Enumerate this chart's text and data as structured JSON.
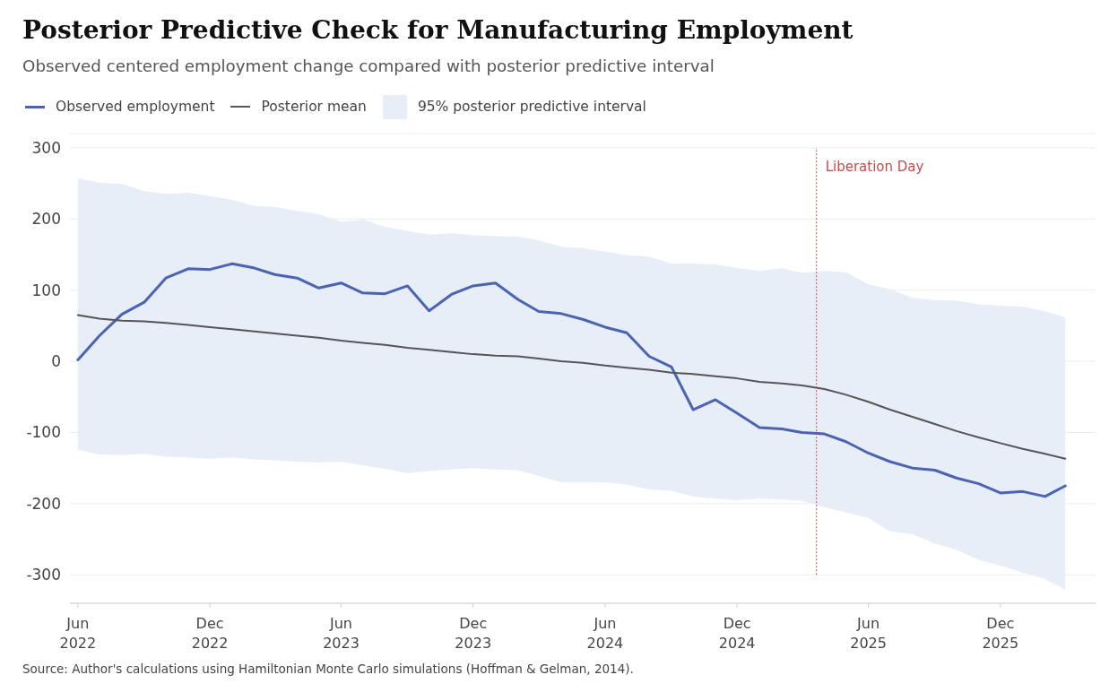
{
  "chart_data": {
    "type": "line",
    "title": "Posterior Predictive Check for Manufacturing Employment",
    "subtitle": "Observed centered employment change compared with posterior predictive interval",
    "x": [
      "2022-06",
      "2022-07",
      "2022-08",
      "2022-09",
      "2022-10",
      "2022-11",
      "2022-12",
      "2023-01",
      "2023-02",
      "2023-03",
      "2023-04",
      "2023-05",
      "2023-06",
      "2023-07",
      "2023-08",
      "2023-09",
      "2023-10",
      "2023-11",
      "2023-12",
      "2024-01",
      "2024-02",
      "2024-03",
      "2024-04",
      "2024-05",
      "2024-06",
      "2024-07",
      "2024-08",
      "2024-09",
      "2024-10",
      "2024-11",
      "2024-12",
      "2025-01",
      "2025-02",
      "2025-03",
      "2025-04",
      "2025-05",
      "2025-06",
      "2025-07",
      "2025-08",
      "2025-09",
      "2025-10",
      "2025-11",
      "2025-12",
      "2026-01",
      "2026-02",
      "2026-03"
    ],
    "series": [
      {
        "name": "Observed employment",
        "color": "#4a63b3",
        "values": [
          2,
          36,
          66,
          83,
          117,
          130,
          129,
          137,
          131,
          122,
          117,
          103,
          110,
          96,
          95,
          106,
          71,
          94,
          106,
          110,
          87,
          70,
          67,
          59,
          48,
          40,
          7,
          -8,
          -68,
          -54,
          -73,
          -93,
          -95,
          -100,
          -102,
          -113,
          -129,
          -141,
          -150,
          -153,
          -164,
          -172,
          -185,
          -183,
          -190,
          -175
        ]
      },
      {
        "name": "Posterior mean",
        "color": "#555555",
        "values": [
          65,
          60,
          57,
          56,
          54,
          51,
          48,
          45,
          42,
          39,
          36,
          33,
          29,
          26,
          23,
          19,
          16,
          13,
          10,
          8,
          7,
          4,
          0,
          -2,
          -6,
          -9,
          -12,
          -16,
          -18,
          -21,
          -24,
          -29,
          -31,
          -34,
          -39,
          -47,
          -57,
          -68,
          -78,
          -88,
          -98,
          -107,
          -115,
          -123,
          -130,
          -137
        ]
      },
      {
        "name": "95% posterior predictive interval",
        "type": "area",
        "color": "#e7eef8",
        "values": [
          null,
          null,
          null,
          null,
          null,
          null,
          null,
          null,
          null,
          null,
          null,
          null,
          null,
          null,
          null,
          null,
          null,
          null,
          null,
          null,
          null,
          null,
          null,
          null,
          null,
          null,
          null,
          null,
          null,
          null,
          null,
          null,
          null,
          null,
          null,
          null,
          null,
          null,
          null,
          null,
          null,
          null,
          null,
          null,
          null,
          null
        ],
        "lower": [
          -124,
          -131,
          -132,
          -130,
          -134,
          -135,
          -137,
          -135,
          -138,
          -139,
          -141,
          -142,
          -141,
          -146,
          -151,
          -157,
          -154,
          -152,
          -150,
          -152,
          -153,
          -161,
          -170,
          -170,
          -170,
          -173,
          -180,
          -182,
          -190,
          -193,
          -195,
          -193,
          -194,
          -196,
          -205,
          -212,
          -220,
          -239,
          -243,
          -256,
          -265,
          -279,
          -287,
          -297,
          -306,
          -321
        ],
        "upper": [
          257,
          251,
          249,
          239,
          235,
          237,
          232,
          227,
          218,
          217,
          211,
          207,
          196,
          199,
          189,
          183,
          178,
          180,
          177,
          176,
          175,
          170,
          161,
          159,
          154,
          149,
          147,
          137,
          137,
          136,
          131,
          127,
          131,
          124,
          127,
          125,
          108,
          101,
          89,
          86,
          85,
          80,
          78,
          77,
          70,
          62
        ]
      }
    ],
    "xlim": [
      "2022-05-21",
      "2026-04-12"
    ],
    "xticks": [
      {
        "value": "2022-06",
        "label": "Jun 2022"
      },
      {
        "value": "2022-12",
        "label": "Dec 2022"
      },
      {
        "value": "2023-06",
        "label": "Jun 2023"
      },
      {
        "value": "2023-12",
        "label": "Dec 2023"
      },
      {
        "value": "2024-06",
        "label": "Jun 2024"
      },
      {
        "value": "2024-12",
        "label": "Dec 2024"
      },
      {
        "value": "2025-06",
        "label": "Jun 2025"
      },
      {
        "value": "2025-12",
        "label": "Dec 2025"
      }
    ],
    "ylim": [
      -340,
      320
    ],
    "yticks": [
      -300,
      -200,
      -100,
      0,
      100,
      200,
      300
    ],
    "ref_lines": [
      {
        "axis": "x",
        "value": "2025-03-21",
        "label": "Liberation Day",
        "color": "#c94a4a",
        "line_style": "dotted"
      }
    ],
    "grid": "y",
    "legend": "top left",
    "marker": "none",
    "line_style": "solid",
    "annotations": [
      "Source: Author's calculations using Hamiltonian Monte Carlo simulations (Hoffman & Gelman, 2014)."
    ]
  }
}
